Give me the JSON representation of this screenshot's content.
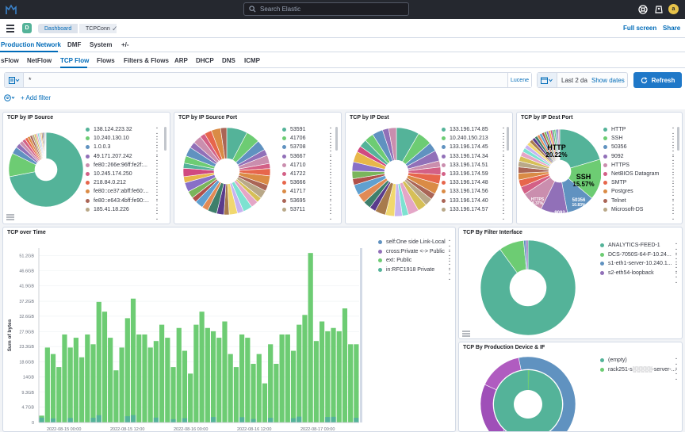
{
  "header": {
    "search_placeholder": "Search Elastic",
    "avatar_letter": "a"
  },
  "subheader": {
    "app_badge": "D",
    "breadcrumb": [
      "Dashboard",
      "TCPConn"
    ],
    "full_screen": "Full screen",
    "share": "Share"
  },
  "tabs_primary": [
    {
      "label": "Production Network",
      "active": true
    },
    {
      "label": "DMF"
    },
    {
      "label": "System"
    },
    {
      "label": "+/-"
    }
  ],
  "tabs_secondary": [
    {
      "label": "sFlow"
    },
    {
      "label": "NetFlow"
    },
    {
      "label": "TCP Flow",
      "active": true
    },
    {
      "label": "Flows"
    },
    {
      "label": "Filters & Flows"
    },
    {
      "label": "ARP"
    },
    {
      "label": "DHCP"
    },
    {
      "label": "DNS"
    },
    {
      "label": "ICMP"
    }
  ],
  "query": {
    "value": "*",
    "language": "Lucene"
  },
  "date": {
    "value": "Last 2 da",
    "show_dates": "Show dates"
  },
  "refresh_label": "Refresh",
  "add_filter": "+ Add filter",
  "panels": {
    "ip_source": {
      "title": "TCP by IP Source",
      "legend": [
        {
          "label": "138.124.223.32",
          "color": "#54b399"
        },
        {
          "label": "10.240.130.10",
          "color": "#6dcc73"
        },
        {
          "label": "1.0.0.3",
          "color": "#6092c0"
        },
        {
          "label": "49.171.207.242",
          "color": "#9170b8"
        },
        {
          "label": "fe80::266e:96ff:fe2f:...",
          "color": "#ca8eae"
        },
        {
          "label": "10.245.174.250",
          "color": "#d36086"
        },
        {
          "label": "218.84.0.212",
          "color": "#e7664c"
        },
        {
          "label": "fe80::ce37:abff:fe60:...",
          "color": "#da8b45"
        },
        {
          "label": "fe80::e643:4bff:fe90:...",
          "color": "#aa6556"
        },
        {
          "label": "185.41.18.226",
          "color": "#b9a888"
        }
      ]
    },
    "ip_source_port": {
      "title": "TCP by IP Source Port",
      "legend": [
        {
          "label": "53591",
          "color": "#54b399"
        },
        {
          "label": "41706",
          "color": "#6dcc73"
        },
        {
          "label": "53708",
          "color": "#6092c0"
        },
        {
          "label": "53667",
          "color": "#9170b8"
        },
        {
          "label": "41710",
          "color": "#ca8eae"
        },
        {
          "label": "41722",
          "color": "#d36086"
        },
        {
          "label": "53666",
          "color": "#e7664c"
        },
        {
          "label": "41717",
          "color": "#da8b45"
        },
        {
          "label": "53695",
          "color": "#aa6556"
        },
        {
          "label": "53711",
          "color": "#b9a888"
        }
      ]
    },
    "ip_dest": {
      "title": "TCP by IP Dest",
      "legend": [
        {
          "label": "133.196.174.85",
          "color": "#54b399"
        },
        {
          "label": "10.240.150.213",
          "color": "#6dcc73"
        },
        {
          "label": "133.196.174.45",
          "color": "#6092c0"
        },
        {
          "label": "133.196.174.34",
          "color": "#9170b8"
        },
        {
          "label": "133.196.174.51",
          "color": "#ca8eae"
        },
        {
          "label": "133.196.174.59",
          "color": "#d36086"
        },
        {
          "label": "133.196.174.48",
          "color": "#e7664c"
        },
        {
          "label": "133.196.174.56",
          "color": "#da8b45"
        },
        {
          "label": "133.196.174.40",
          "color": "#aa6556"
        },
        {
          "label": "133.196.174.57",
          "color": "#b9a888"
        }
      ]
    },
    "ip_dest_port": {
      "title": "TCP by IP Dest Port",
      "legend": [
        {
          "label": "HTTP",
          "color": "#54b399"
        },
        {
          "label": "SSH",
          "color": "#6dcc73"
        },
        {
          "label": "50356",
          "color": "#6092c0"
        },
        {
          "label": "9092",
          "color": "#9170b8"
        },
        {
          "label": "HTTPS",
          "color": "#ca8eae"
        },
        {
          "label": "NetBIOS Datagram",
          "color": "#d36086"
        },
        {
          "label": "SMTP",
          "color": "#e7664c"
        },
        {
          "label": "Postgres",
          "color": "#da8b45"
        },
        {
          "label": "Telnet",
          "color": "#aa6556"
        },
        {
          "label": "Microsoft-DS",
          "color": "#b9a888"
        }
      ],
      "slice_labels": [
        {
          "name": "HTTP",
          "pct": "20.22%"
        },
        {
          "name": "SSH",
          "pct": "15.57%"
        },
        {
          "name": "50356",
          "pct": "10.83%"
        },
        {
          "name": "9092",
          "pct": "10.14%"
        },
        {
          "name": "HTTPS",
          "pct": "8.37%"
        }
      ]
    },
    "over_time": {
      "title": "TCP over Time",
      "ylabel": "Sum of bytes",
      "legend": [
        {
          "label": "self:One side Link-Local",
          "color": "#6092c0"
        },
        {
          "label": "cross:Private <-> Public",
          "color": "#9170b8"
        },
        {
          "label": "ext: Public",
          "color": "#6dcc73"
        },
        {
          "label": "in:RFC1918 Private",
          "color": "#54b399"
        }
      ]
    },
    "filter_interface": {
      "title": "TCP By Filter Interface",
      "legend": [
        {
          "label": "ANALYTICS-FEED-1",
          "color": "#54b399"
        },
        {
          "label": "DCS-7050S-64-F-10.24...",
          "color": "#6dcc73"
        },
        {
          "label": "s1-eth1-server-10.240.1...",
          "color": "#6092c0"
        },
        {
          "label": "s2-eth54-loopback",
          "color": "#9170b8"
        }
      ]
    },
    "prod_device": {
      "title": "TCP By Production Device & IF",
      "legend": [
        {
          "label": "(empty)",
          "color": "#54b399"
        },
        {
          "label": "rack251-s░░░░░-server-...",
          "color": "#6dcc73"
        }
      ]
    }
  },
  "chart_data": [
    {
      "type": "bar",
      "title": "TCP over Time",
      "ylabel": "Sum of bytes",
      "yticks": [
        "0",
        "4.7GB",
        "9.3GB",
        "14GB",
        "18.6GB",
        "23.3GB",
        "27.9GB",
        "32.6GB",
        "37.2GB",
        "41.9GB",
        "46.6GB",
        "51.2GB"
      ],
      "ylim": [
        0,
        53.5
      ],
      "x_tick_labels": [
        "2022-08-15 00:00",
        "2022-08-15 12:00",
        "2022-08-16 00:00",
        "2022-08-16 12:00",
        "2022-08-17 00:00"
      ],
      "series": [
        {
          "name": "ext: Public",
          "values": [
            2.1,
            23,
            21,
            17,
            27,
            23,
            26,
            20,
            27,
            24,
            37,
            34,
            26,
            16,
            23,
            32,
            38,
            27,
            27,
            23,
            25,
            30,
            26,
            17,
            29,
            22,
            15,
            30,
            34,
            29,
            28,
            26,
            31,
            21,
            17,
            27,
            26,
            18,
            21,
            12,
            24,
            18,
            27,
            27,
            22,
            30,
            33,
            52,
            25,
            31,
            28,
            29,
            28,
            35,
            24,
            24
          ]
        },
        {
          "name": "in:RFC1918 Private",
          "values": [
            1.5,
            0,
            0,
            0,
            0,
            0,
            0,
            0,
            0,
            0.4,
            0,
            0,
            0,
            0,
            0,
            0,
            0,
            0,
            0,
            0,
            0,
            0,
            0,
            0,
            0,
            0,
            0,
            0,
            0,
            0,
            0,
            0,
            0,
            0,
            0,
            0,
            0,
            0,
            0,
            0,
            0,
            0,
            0,
            0,
            0,
            0,
            0,
            0,
            0,
            0,
            0,
            0,
            0,
            0,
            0,
            0
          ]
        }
      ]
    }
  ]
}
